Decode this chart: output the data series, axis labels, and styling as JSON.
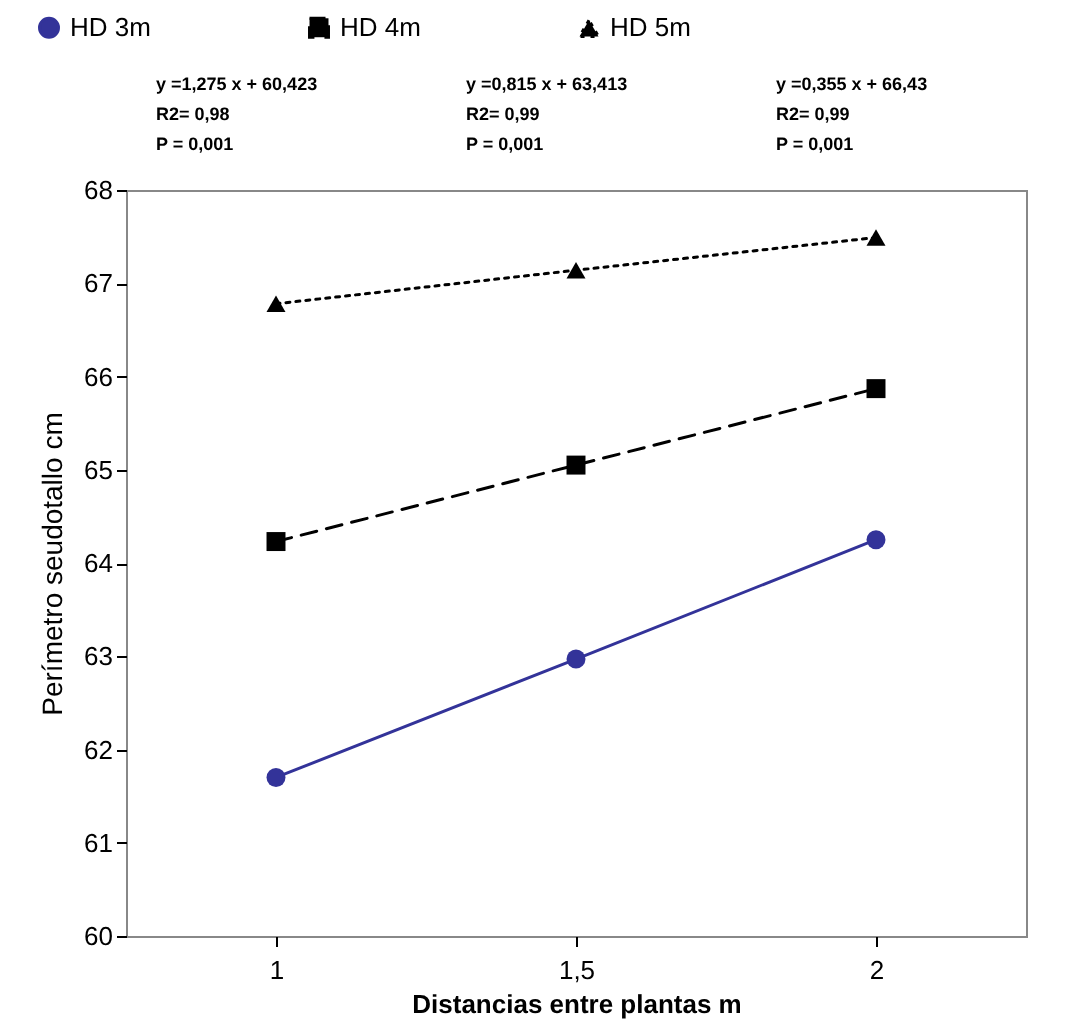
{
  "chart_data": {
    "type": "line",
    "xlabel": "Distancias entre plantas m",
    "ylabel": "Perímetro seudotallo cm",
    "categories": [
      "1",
      "1,5",
      "2"
    ],
    "series": [
      {
        "name": "HD 3m",
        "color": "#333399",
        "values": [
          61.7,
          62.97,
          64.25
        ],
        "marker": "circle",
        "line_style": "solid"
      },
      {
        "name": "HD 4m",
        "color": "#000000",
        "values": [
          64.23,
          65.05,
          65.87
        ],
        "marker": "square",
        "line_style": "dashed"
      },
      {
        "name": "HD 5m",
        "color": "#000000",
        "values": [
          66.78,
          67.14,
          67.49
        ],
        "marker": "triangle",
        "line_style": "dotted"
      }
    ],
    "annotations": [
      "y =1,275 x + 60,423\nR2= 0,98\nP = 0,001",
      "y =0,815 x + 63,413\nR2= 0,99\nP = 0,001",
      "y =0,355 x + 66,43\nR2= 0,99\nP = 0,001"
    ],
    "ylim": [
      60,
      68
    ],
    "yticks": [
      60,
      61,
      62,
      63,
      64,
      65,
      66,
      67,
      68
    ],
    "grid": false,
    "legend": "top"
  }
}
